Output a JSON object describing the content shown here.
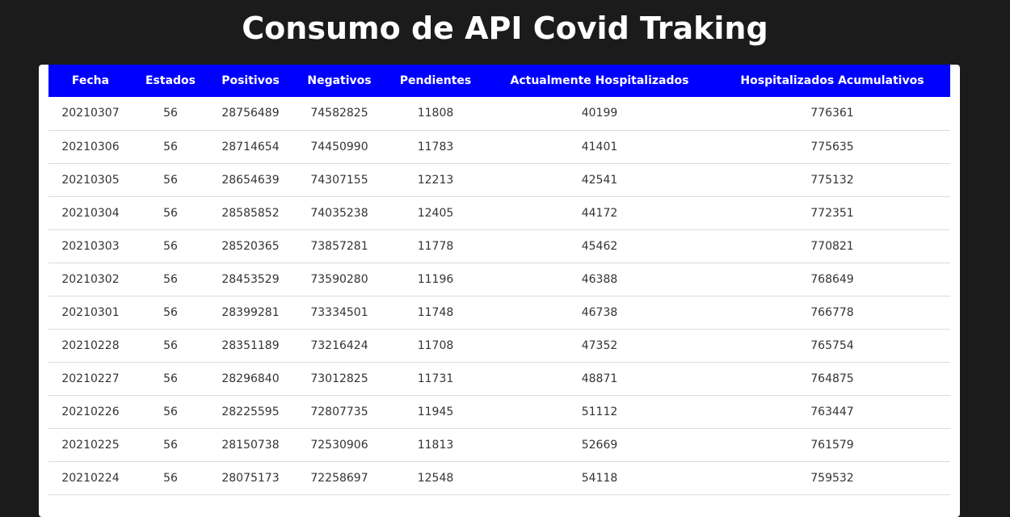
{
  "page": {
    "title": "Consumo de API Covid Traking"
  },
  "colors": {
    "background": "#1b1b1b",
    "header_bg": "#0000ff",
    "header_text": "#ffffff",
    "row_text": "#333333",
    "row_border": "#dcdcdc"
  },
  "table": {
    "headers": [
      "Fecha",
      "Estados",
      "Positivos",
      "Negativos",
      "Pendientes",
      "Actualmente Hospitalizados",
      "Hospitalizados Acumulativos"
    ],
    "rows": [
      [
        "20210307",
        "56",
        "28756489",
        "74582825",
        "11808",
        "40199",
        "776361"
      ],
      [
        "20210306",
        "56",
        "28714654",
        "74450990",
        "11783",
        "41401",
        "775635"
      ],
      [
        "20210305",
        "56",
        "28654639",
        "74307155",
        "12213",
        "42541",
        "775132"
      ],
      [
        "20210304",
        "56",
        "28585852",
        "74035238",
        "12405",
        "44172",
        "772351"
      ],
      [
        "20210303",
        "56",
        "28520365",
        "73857281",
        "11778",
        "45462",
        "770821"
      ],
      [
        "20210302",
        "56",
        "28453529",
        "73590280",
        "11196",
        "46388",
        "768649"
      ],
      [
        "20210301",
        "56",
        "28399281",
        "73334501",
        "11748",
        "46738",
        "766778"
      ],
      [
        "20210228",
        "56",
        "28351189",
        "73216424",
        "11708",
        "47352",
        "765754"
      ],
      [
        "20210227",
        "56",
        "28296840",
        "73012825",
        "11731",
        "48871",
        "764875"
      ],
      [
        "20210226",
        "56",
        "28225595",
        "72807735",
        "11945",
        "51112",
        "763447"
      ],
      [
        "20210225",
        "56",
        "28150738",
        "72530906",
        "11813",
        "52669",
        "761579"
      ],
      [
        "20210224",
        "56",
        "28075173",
        "72258697",
        "12548",
        "54118",
        "759532"
      ]
    ]
  }
}
